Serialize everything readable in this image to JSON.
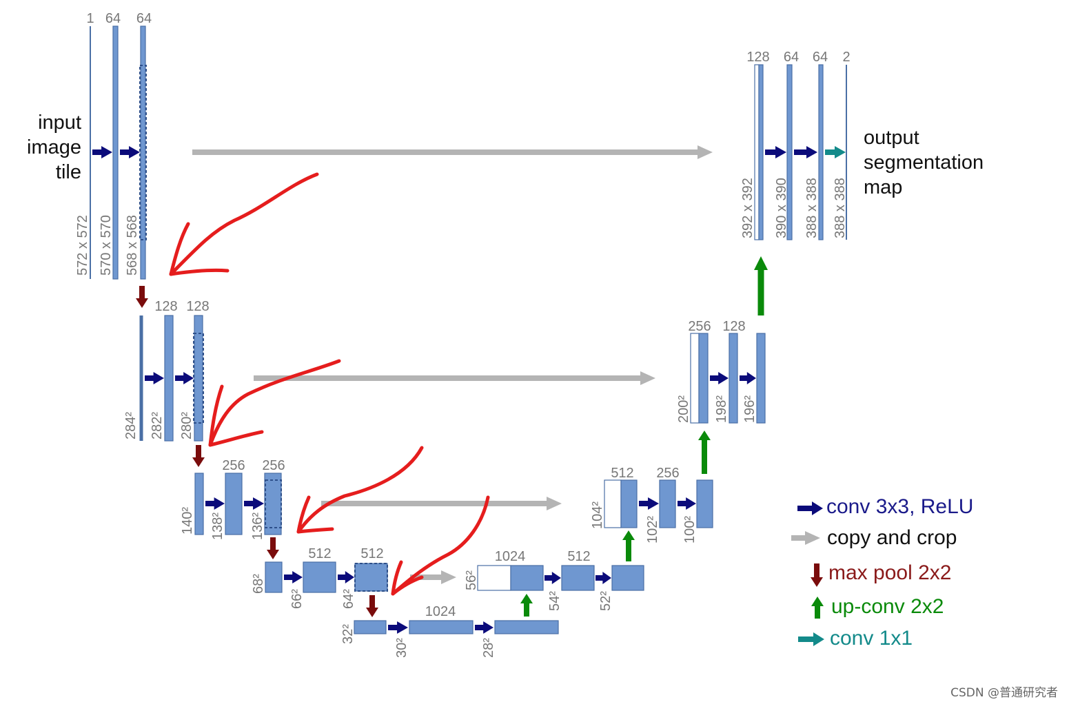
{
  "colors": {
    "block": "#6f97d0",
    "block_edge": "#4a6fa5",
    "conv": "#0b0b7a",
    "copy": "#b4b4b4",
    "pool": "#7a0c0c",
    "upconv": "#0a8a0a",
    "conv1x1": "#138a8a",
    "annotation": "#e51d1d",
    "label": "#777777"
  },
  "input_label": [
    "input",
    "image",
    "tile"
  ],
  "output_label": [
    "output",
    "segmentation",
    "map"
  ],
  "legend": {
    "conv": "conv 3x3, ReLU",
    "copy": "copy and crop",
    "pool": "max pool 2x2",
    "upconv": "up-conv 2x2",
    "conv1x1": "conv 1x1"
  },
  "channel_labels": {
    "l1": [
      "1",
      "64",
      "64"
    ],
    "l2": [
      "128",
      "128"
    ],
    "l3": [
      "256",
      "256"
    ],
    "l4": [
      "512",
      "512"
    ],
    "l5": [
      "1024"
    ],
    "r4": [
      "1024",
      "512"
    ],
    "r3": [
      "512",
      "256"
    ],
    "r2": [
      "256",
      "128"
    ],
    "r1": [
      "128",
      "64",
      "64",
      "2"
    ]
  },
  "size_labels": {
    "l1": [
      "572 x 572",
      "570 x 570",
      "568 x 568"
    ],
    "l2": [
      "284²",
      "282²",
      "280²"
    ],
    "l3": [
      "140²",
      "138²",
      "136²"
    ],
    "l4": [
      "68²",
      "66²",
      "64²"
    ],
    "l5": [
      "32²",
      "30²",
      "28²"
    ],
    "r4": [
      "56²",
      "54²",
      "52²"
    ],
    "r3": [
      "104²",
      "102²",
      "100²"
    ],
    "r2": [
      "200²",
      "198²",
      "196²"
    ],
    "r1": [
      "392 x 392",
      "390 x 390",
      "388 x 388",
      "388 x 388"
    ]
  },
  "watermark": "CSDN @普通研究者"
}
